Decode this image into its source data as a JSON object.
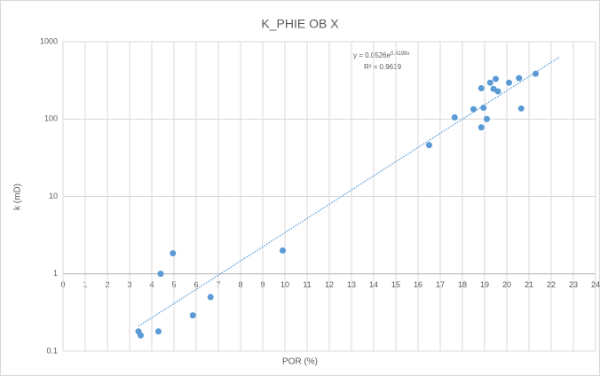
{
  "chart_data": {
    "type": "scatter",
    "title": "K_PHIE OB X",
    "x_label": "POR (%)",
    "y_label": "k (mD)",
    "x": [
      3.4,
      3.5,
      4.3,
      4.4,
      4.95,
      5.85,
      6.65,
      9.9,
      16.5,
      17.65,
      18.5,
      18.85,
      18.85,
      18.95,
      19.1,
      19.25,
      19.4,
      19.5,
      19.6,
      20.1,
      20.55,
      20.65,
      21.3
    ],
    "values": [
      0.18,
      0.16,
      0.18,
      1.0,
      1.84,
      0.29,
      0.5,
      2.0,
      46,
      105,
      134,
      250,
      78,
      140,
      100,
      295,
      245,
      330,
      228,
      295,
      338,
      137,
      385
    ],
    "color": "#5b9bd5",
    "trendline": {
      "x": [
        3.4,
        22.4
      ],
      "y": [
        0.21,
        640
      ],
      "color": "#5b9bd5",
      "equation": "y = 0.0526e",
      "equation_exponent": "0.4199x",
      "r_squared": "R² = 0.9619"
    },
    "xlim": [
      0,
      24
    ],
    "xticks": [
      0,
      1,
      2,
      3,
      4,
      5,
      6,
      7,
      8,
      9,
      10,
      11,
      12,
      13,
      14,
      15,
      16,
      17,
      18,
      19,
      20,
      21,
      22,
      23,
      24
    ],
    "ylim": [
      0.1,
      1000
    ],
    "yticks": [
      0.1,
      1,
      10,
      100,
      1000
    ],
    "log_y": true,
    "x_axis_crosses": 1,
    "grid": true
  }
}
